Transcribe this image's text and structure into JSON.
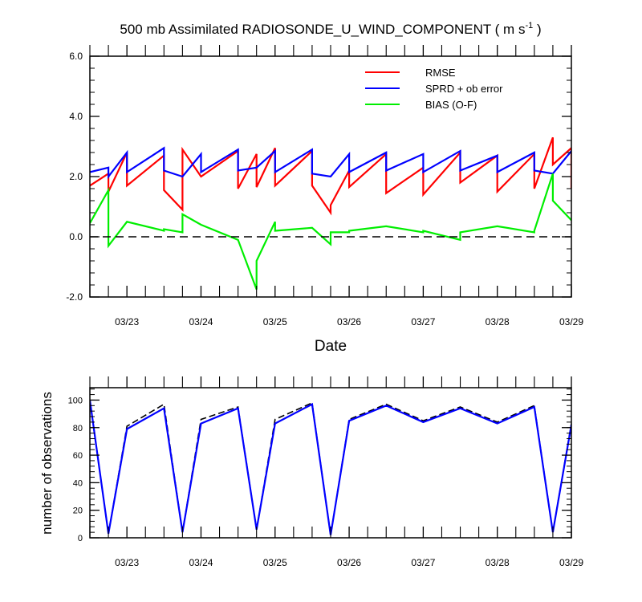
{
  "chart_data": [
    {
      "type": "line",
      "title": "500 mb Assimilated RADIOSONDE_U_WIND_COMPONENT ( m s",
      "title_exp": "-1",
      "title_end": " )",
      "xlabel": "Date",
      "ylabel": "",
      "xlim": [
        0,
        6.5
      ],
      "ylim": [
        -2.0,
        6.0
      ],
      "yticks": [
        -2.0,
        0.0,
        2.0,
        4.0,
        6.0
      ],
      "ytick_labels": [
        "-2.0",
        "0.0",
        "2.0",
        "4.0",
        "6.0"
      ],
      "xticks": [
        0.5,
        1.5,
        2.5,
        3.5,
        4.5,
        5.5,
        6.5
      ],
      "xtick_labels": [
        "03/23",
        "03/24",
        "03/25",
        "03/26",
        "03/27",
        "03/28",
        "03/29"
      ],
      "zero_line": true,
      "legend_position": "top-right",
      "series": [
        {
          "name": "RMSE",
          "color": "#ff0000",
          "x": [
            0,
            0.25,
            0.25,
            0.5,
            0.5,
            1.0,
            1.0,
            1.25,
            1.25,
            1.5,
            1.5,
            2.0,
            2.0,
            2.25,
            2.25,
            2.5,
            2.5,
            3.0,
            3.0,
            3.25,
            3.25,
            3.5,
            3.5,
            4.0,
            4.0,
            4.5,
            4.5,
            5.0,
            5.0,
            5.5,
            5.5,
            6.0,
            6.0,
            6.25,
            6.25,
            6.5,
            6.5
          ],
          "y": [
            1.7,
            2.1,
            1.5,
            2.8,
            1.7,
            2.7,
            1.55,
            0.9,
            2.9,
            2.0,
            2.0,
            2.85,
            1.6,
            2.75,
            1.65,
            2.95,
            1.7,
            2.85,
            1.7,
            0.8,
            1.05,
            2.2,
            1.65,
            2.75,
            1.45,
            2.3,
            1.4,
            2.8,
            1.8,
            2.7,
            1.5,
            2.75,
            1.6,
            3.3,
            2.4,
            2.95,
            1.6
          ]
        },
        {
          "name": "SPRD + ob error",
          "color": "#0000ff",
          "x": [
            0,
            0.25,
            0.25,
            0.5,
            0.5,
            1.0,
            1.0,
            1.25,
            1.25,
            1.5,
            1.5,
            2.0,
            2.0,
            2.25,
            2.25,
            2.5,
            2.5,
            3.0,
            3.0,
            3.25,
            3.25,
            3.5,
            3.5,
            4.0,
            4.0,
            4.5,
            4.5,
            5.0,
            5.0,
            5.5,
            5.5,
            6.0,
            6.0,
            6.25,
            6.25,
            6.5
          ],
          "y": [
            2.15,
            2.3,
            2.0,
            2.8,
            2.15,
            2.95,
            2.2,
            2.0,
            2.0,
            2.75,
            2.15,
            2.9,
            2.2,
            2.3,
            2.3,
            2.85,
            2.15,
            2.9,
            2.1,
            2.0,
            2.0,
            2.75,
            2.15,
            2.8,
            2.2,
            2.75,
            2.15,
            2.85,
            2.2,
            2.7,
            2.15,
            2.8,
            2.2,
            2.1,
            2.1,
            2.85
          ]
        },
        {
          "name": "BIAS (O-F)",
          "color": "#00ee00",
          "x": [
            0,
            0.25,
            0.25,
            0.5,
            0.5,
            1.0,
            1.0,
            1.25,
            1.25,
            1.5,
            1.5,
            2.0,
            2.0,
            2.25,
            2.25,
            2.5,
            2.5,
            3.0,
            3.0,
            3.25,
            3.25,
            3.5,
            3.5,
            4.0,
            4.0,
            4.5,
            4.5,
            5.0,
            5.0,
            5.5,
            5.5,
            6.0,
            6.0,
            6.25,
            6.25,
            6.5
          ],
          "y": [
            0.45,
            1.55,
            -0.3,
            0.5,
            0.5,
            0.2,
            0.25,
            0.15,
            0.75,
            0.4,
            0.4,
            -0.1,
            -0.1,
            -1.75,
            -0.8,
            0.5,
            0.2,
            0.3,
            0.3,
            -0.25,
            0.15,
            0.15,
            0.2,
            0.35,
            0.35,
            0.15,
            0.2,
            -0.1,
            0.15,
            0.35,
            0.35,
            0.15,
            0.2,
            2.1,
            1.2,
            0.55
          ]
        }
      ]
    },
    {
      "type": "line",
      "title": "",
      "xlabel": "",
      "ylabel": "number of observations",
      "xlim": [
        0,
        6.5
      ],
      "ylim": [
        0,
        109
      ],
      "yticks": [
        0,
        20,
        40,
        60,
        80,
        100
      ],
      "ytick_labels": [
        "0",
        "20",
        "40",
        "60",
        "80",
        "100"
      ],
      "xticks": [
        0.5,
        1.5,
        2.5,
        3.5,
        4.5,
        5.5,
        6.5
      ],
      "xtick_labels": [
        "03/23",
        "03/24",
        "03/25",
        "03/26",
        "03/27",
        "03/28",
        "03/29"
      ],
      "series": [
        {
          "name": "",
          "style": "dashed",
          "color": "#000000",
          "x": [
            0,
            0.25,
            0.5,
            1.0,
            1.25,
            1.5,
            2.0,
            2.25,
            2.5,
            3.0,
            3.25,
            3.5,
            4.0,
            4.5,
            5.0,
            5.5,
            6.0,
            6.25,
            6.5
          ],
          "y": [
            100,
            3,
            81,
            97,
            4,
            86,
            95,
            6,
            86,
            98,
            2,
            86,
            97,
            85,
            95,
            84,
            96,
            4,
            83
          ]
        },
        {
          "name": "",
          "style": "solid",
          "color": "#0000ff",
          "x": [
            0,
            0.25,
            0.5,
            1.0,
            1.25,
            1.5,
            2.0,
            2.25,
            2.5,
            3.0,
            3.25,
            3.5,
            4.0,
            4.5,
            5.0,
            5.5,
            6.0,
            6.25,
            6.5
          ],
          "y": [
            100,
            3,
            79,
            94,
            4,
            83,
            94,
            6,
            83,
            97,
            2,
            85,
            96,
            84,
            94,
            83,
            95,
            4,
            82
          ]
        }
      ]
    }
  ]
}
